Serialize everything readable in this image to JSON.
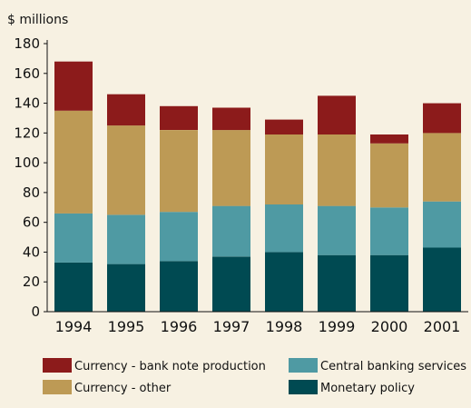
{
  "chart_data": {
    "type": "bar",
    "stacked": true,
    "ylabel": "$ millions",
    "categories": [
      "1994",
      "1995",
      "1996",
      "1997",
      "1998",
      "1999",
      "2000",
      "2001"
    ],
    "ylim": [
      0,
      180
    ],
    "yticks": [
      0,
      20,
      40,
      60,
      80,
      100,
      120,
      140,
      160,
      180
    ],
    "grid": false,
    "legend_position": "bottom",
    "series": [
      {
        "name": "Monetary policy",
        "color": "#004a52",
        "values": [
          33,
          32,
          34,
          37,
          40,
          38,
          38,
          43
        ]
      },
      {
        "name": "Central banking services",
        "color": "#4f9aa3",
        "values": [
          33,
          33,
          33,
          34,
          32,
          33,
          32,
          31
        ]
      },
      {
        "name": "Currency - other",
        "color": "#bd9a55",
        "values": [
          69,
          60,
          55,
          51,
          47,
          48,
          43,
          46
        ]
      },
      {
        "name": "Currency - bank note production",
        "color": "#8c1b1b",
        "values": [
          33,
          21,
          16,
          15,
          10,
          26,
          6,
          20
        ]
      }
    ],
    "legend_order": [
      "Currency - bank note production",
      "Central banking services",
      "Currency - other",
      "Monetary policy"
    ]
  }
}
